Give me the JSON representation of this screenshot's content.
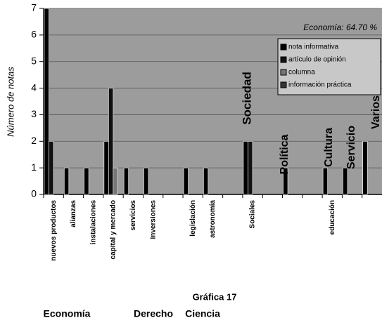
{
  "chart_data": {
    "type": "bar",
    "y_label": "Número de notas",
    "categories": [
      "nuevos productos",
      "alianzas",
      "instalaciones",
      "capital y mercado",
      "servicios",
      "inversiones",
      null,
      "legislación",
      "astronomía",
      null,
      "Sociales",
      null,
      null,
      null,
      "educación",
      null,
      null
    ],
    "series": [
      {
        "name": "nota informativa",
        "color": "#000000",
        "values": [
          7,
          1,
          1,
          2,
          1,
          1,
          null,
          1,
          1,
          null,
          2,
          null,
          1,
          null,
          1,
          1,
          2
        ]
      },
      {
        "name": "artículo de opinión",
        "color": "#111111",
        "values": [
          2,
          null,
          null,
          4,
          null,
          null,
          null,
          null,
          null,
          null,
          2,
          null,
          null,
          null,
          null,
          null,
          null
        ]
      },
      {
        "name": "columna",
        "color": "#777777",
        "values": [
          null,
          null,
          null,
          1,
          null,
          null,
          null,
          null,
          null,
          null,
          null,
          null,
          null,
          null,
          null,
          null,
          null
        ]
      },
      {
        "name": "información práctica",
        "color": "#333333",
        "values": [
          null,
          null,
          null,
          null,
          null,
          null,
          null,
          null,
          null,
          null,
          null,
          null,
          null,
          null,
          null,
          null,
          null
        ]
      }
    ],
    "ylim": [
      0,
      7
    ],
    "yticks": [
      0,
      1,
      2,
      3,
      4,
      5,
      6,
      7
    ],
    "grid": true,
    "legend": "top-right",
    "annotations": [
      "Economía: 64.70 %",
      "Sociedad",
      "Política",
      "Cultura",
      "Servicio",
      "Varios"
    ],
    "caption": "Gráfica 17",
    "groups": [
      "Economía",
      "Derecho",
      "Ciencia"
    ]
  }
}
